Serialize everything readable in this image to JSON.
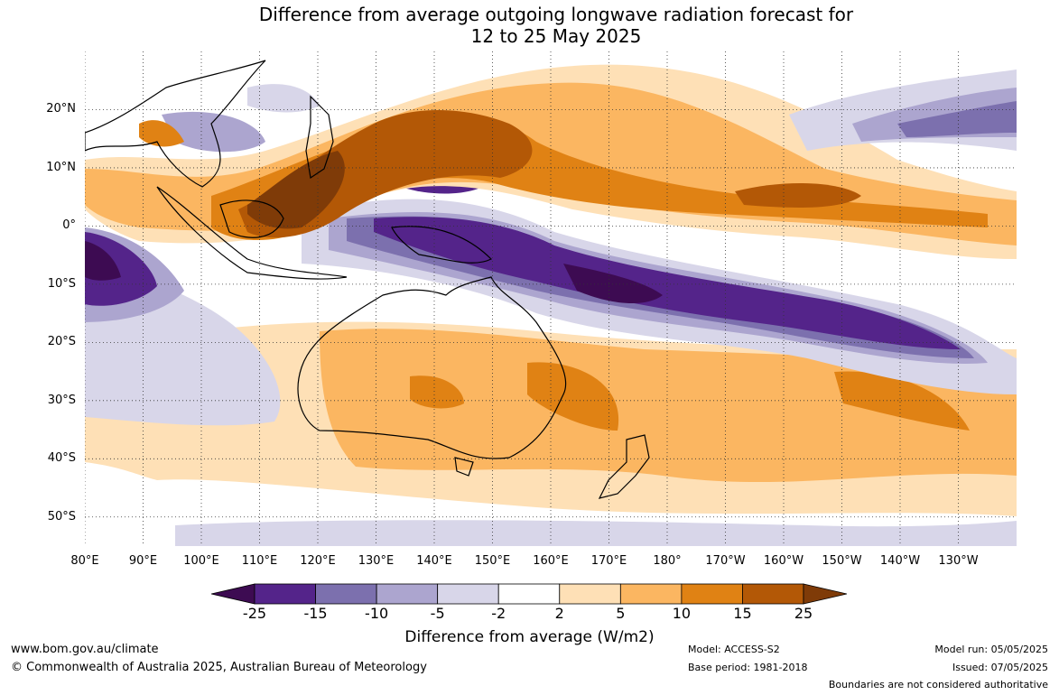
{
  "title": {
    "line1": "Difference from average outgoing longwave radiation forecast for",
    "line2": "12 to 25 May 2025"
  },
  "map": {
    "lon_range": [
      80,
      240
    ],
    "lat_range": [
      -55,
      30
    ],
    "lat_ticks": [
      "20°N",
      "10°N",
      "0°",
      "10°S",
      "20°S",
      "30°S",
      "40°S",
      "50°S"
    ],
    "lat_tick_values": [
      20,
      10,
      0,
      -10,
      -20,
      -30,
      -40,
      -50
    ],
    "lon_ticks": [
      "80°E",
      "90°E",
      "100°E",
      "110°E",
      "120°E",
      "130°E",
      "140°E",
      "150°E",
      "160°E",
      "170°E",
      "180°",
      "170°W",
      "160°W",
      "150°W",
      "140°W",
      "130°W"
    ],
    "lon_tick_values": [
      80,
      90,
      100,
      110,
      120,
      130,
      140,
      150,
      160,
      170,
      180,
      190,
      200,
      210,
      220,
      230
    ],
    "gridlines": true
  },
  "legend": {
    "ticks": [
      "-25",
      "-15",
      "-10",
      "-5",
      "-2",
      "2",
      "5",
      "10",
      "15",
      "25"
    ],
    "colors": [
      "#3d0b52",
      "#54248a",
      "#7c70ae",
      "#aca5cf",
      "#d8d6e9",
      "#ffffff",
      "#fee0b6",
      "#fbb661",
      "#e08214",
      "#b35806",
      "#7f3b08"
    ],
    "label": "Difference from average (W/m2)"
  },
  "footer": {
    "website": "www.bom.gov.au/climate",
    "copyright": "© Commonwealth of Australia 2025, Australian Bureau of Meteorology",
    "model": "Model: ACCESS-S2",
    "base_period": "Base period: 1981-2018",
    "model_run": "Model run: 05/05/2025",
    "issued": "Issued: 07/05/2025",
    "disclaimer": "Boundaries are not considered authoritative"
  }
}
